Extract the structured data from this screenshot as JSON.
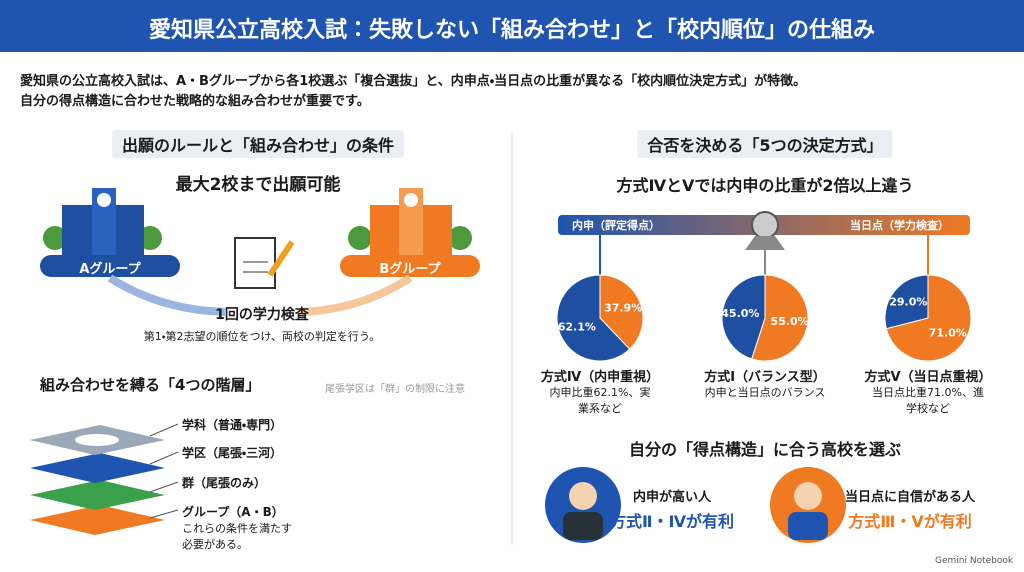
{
  "header": {
    "title": "愛知県公立高校入試：失敗しない「組み合わせ」と「校内順位」の仕組み"
  },
  "intro": [
    "愛知県の公立高校入試は、A・Bグループから各1校選ぶ「複合選抜」と、内申点・当日点の比重が異なる「校内順位決定方式」が特徴。",
    "自分の得点構造に合わせた戦略的な組み合わせが重要です。"
  ],
  "left": {
    "section_title": "出願のルールと「組み合わせ」の条件",
    "headline": "最大2校まで出願可能",
    "group_a": "Aグループ",
    "group_b": "Bグループ",
    "exam": "1回の学力検査",
    "exam_note": "第1・第2志望の順位をつけ、両校の判定を行う。",
    "layers_title": "組み合わせを縛る「4つの階層」",
    "layers_note": "尾張学区は「群」の制限に注意",
    "layers": [
      "学科（普通・専門）",
      "学区（尾張・三河）",
      "群（尾張のみ）",
      "グループ（A・B）"
    ],
    "layers_footer": "これらの条件を満たす必要がある。"
  },
  "right": {
    "section_title": "合否を決める「5つの決定方式」",
    "headline": "方式ⅣとⅤでは内申の比重が2倍以上違う",
    "scale_left": "内申（評定得点）",
    "scale_right": "当日点（学力検査）",
    "choose_title": "自分の「得点構造」に合う高校を選ぶ",
    "profiles": [
      {
        "label": "内申が高い人",
        "advice": "方式Ⅱ・Ⅳが有利"
      },
      {
        "label": "当日点に自信がある人",
        "advice": "方式Ⅲ・Ⅴが有利"
      }
    ]
  },
  "chart_data": [
    {
      "type": "pie",
      "title": "方式Ⅳ（内申重視）",
      "note": "内申比重62.1%、実業系など",
      "values": [
        37.9,
        62.1
      ],
      "value_labels": [
        "37.9%",
        "62.1%"
      ],
      "colors": [
        "#f07a22",
        "#1f4fa0"
      ]
    },
    {
      "type": "pie",
      "title": "方式Ⅰ（バランス型）",
      "note": "内申と当日点のバランス",
      "values": [
        55,
        45
      ],
      "value_labels": [
        "55.0%",
        "45.0%"
      ],
      "colors": [
        "#f07a22",
        "#1f4fa0"
      ]
    },
    {
      "type": "pie",
      "title": "方式Ⅴ（当日点重視）",
      "note": "当日点比重71.0%、進学校など",
      "values": [
        71,
        29
      ],
      "value_labels": [
        "71.0%",
        "29.0%"
      ],
      "colors": [
        "#f07a22",
        "#1f4fa0"
      ]
    }
  ],
  "footer": "Gemini Notebook"
}
